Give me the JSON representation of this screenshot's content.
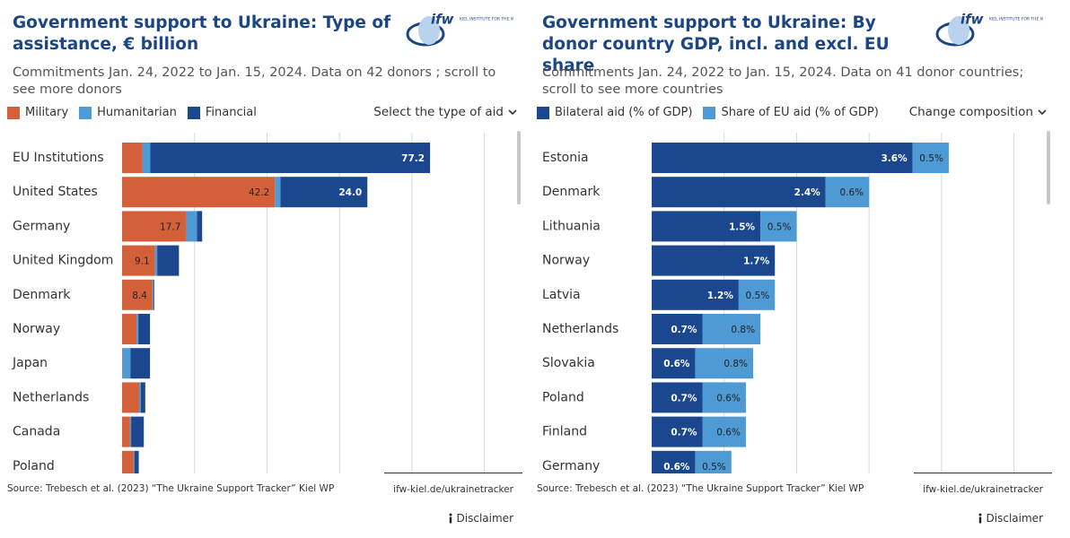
{
  "logo": {
    "mark": "ifw",
    "text": "KIEL INSTITUTE FOR THE WORLD ECONOMY"
  },
  "chart_data": [
    {
      "type": "bar",
      "orientation": "horizontal",
      "stacked": true,
      "title": "Government support to Ukraine:  Type of assistance, € billion",
      "subtitle": "Commitments Jan. 24, 2022 to Jan. 15, 2024. Data on 42 donors ; scroll to see more donors",
      "dropdown": "Select the type of aid",
      "categories": [
        "EU Institutions",
        "United States",
        "Germany",
        "United Kingdom",
        "Denmark",
        "Norway",
        "Japan",
        "Netherlands",
        "Canada",
        "Poland"
      ],
      "series": [
        {
          "name": "Military",
          "color": "#d4603a",
          "values": [
            5.6,
            42.2,
            17.7,
            9.1,
            8.4,
            4.0,
            0.1,
            4.7,
            2.2,
            3.2
          ],
          "value_labels": [
            null,
            "42.2",
            "17.7",
            "9.1",
            "8.4",
            null,
            null,
            null,
            null,
            null
          ]
        },
        {
          "name": "Humanitarian",
          "color": "#4e9ad4",
          "values": [
            2.2,
            1.5,
            3.0,
            0.6,
            0.3,
            0.5,
            2.2,
            0.5,
            0.3,
            0.2
          ],
          "value_labels": [
            null,
            null,
            null,
            null,
            null,
            null,
            null,
            null,
            null,
            null
          ]
        },
        {
          "name": "Financial",
          "color": "#1b478f",
          "values": [
            77.2,
            24.0,
            1.4,
            6.0,
            0.2,
            3.2,
            5.4,
            1.2,
            3.5,
            1.2
          ],
          "value_labels": [
            "77.2",
            "24.0",
            null,
            null,
            null,
            null,
            null,
            null,
            null,
            null
          ]
        }
      ],
      "xlim": [
        0,
        110
      ],
      "xticks": [
        20,
        40,
        60,
        80,
        100
      ],
      "grid": true,
      "source": "Source: Trebesch et al. (2023) “The Ukraine Support Tracker” Kiel WP",
      "link": "ifw-kiel.de/ukrainetracker",
      "disclaimer": "Disclaimer"
    },
    {
      "type": "bar",
      "orientation": "horizontal",
      "stacked": true,
      "title": "Government support to Ukraine: By donor country GDP, incl. and excl. EU share",
      "subtitle": "Commitments Jan. 24, 2022 to Jan. 15, 2024. Data on 41 donor countries; scroll to see more countries",
      "dropdown": "Change composition",
      "categories": [
        "Estonia",
        "Denmark",
        "Lithuania",
        "Norway",
        "Latvia",
        "Netherlands",
        "Slovakia",
        "Poland",
        "Finland",
        "Germany"
      ],
      "series": [
        {
          "name": "Bilateral aid (% of GDP)",
          "color": "#1b478f",
          "values": [
            3.6,
            2.4,
            1.5,
            1.7,
            1.2,
            0.7,
            0.6,
            0.7,
            0.7,
            0.6
          ],
          "value_labels": [
            "3.6%",
            "2.4%",
            "1.5%",
            "1.7%",
            "1.2%",
            "0.7%",
            "0.6%",
            "0.7%",
            "0.7%",
            "0.6%"
          ]
        },
        {
          "name": "Share of EU aid (% of GDP)",
          "color": "#4e9ad4",
          "values": [
            0.5,
            0.6,
            0.5,
            null,
            0.5,
            0.8,
            0.8,
            0.6,
            0.6,
            0.5
          ],
          "value_labels": [
            "0.5%",
            "0.6%",
            "0.5%",
            null,
            "0.5%",
            "0.8%",
            "0.8%",
            "0.6%",
            "0.6%",
            "0.5%"
          ]
        }
      ],
      "xlim": [
        0,
        5.5
      ],
      "xticks": [
        1,
        2,
        3,
        4,
        5
      ],
      "grid": true,
      "source": "Source: Trebesch et al. (2023) “The Ukraine Support Tracker” Kiel WP",
      "link": "ifw-kiel.de/ukrainetracker",
      "disclaimer": "Disclaimer"
    }
  ]
}
